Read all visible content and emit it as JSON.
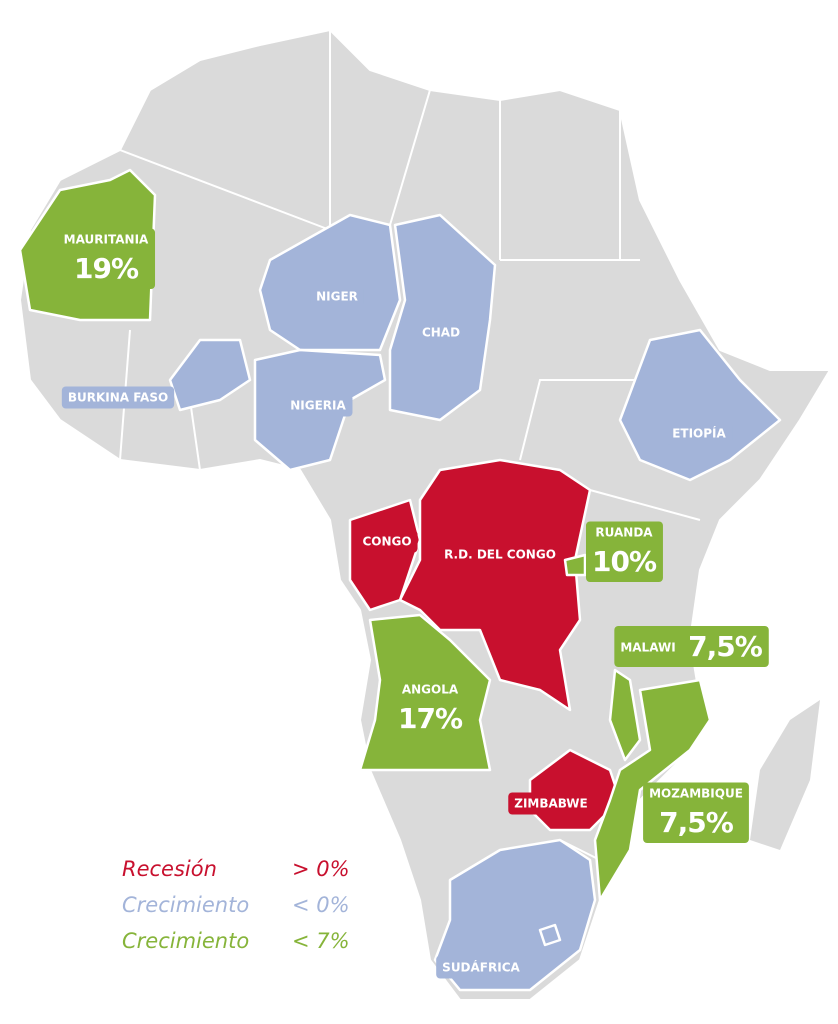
{
  "regions": [
    {
      "label": "MAURITANIA",
      "value": "19%",
      "color": "#86b43a"
    },
    {
      "label": "NIGER",
      "color": "#a3b4d9"
    },
    {
      "label": "CHAD",
      "color": "#a3b4d9"
    },
    {
      "label": "NIGERIA",
      "color": "#a3b4d9"
    },
    {
      "label": "BURKINA FASO",
      "color": "#a3b4d9"
    },
    {
      "label": "ETIOPÍA",
      "color": "#a3b4d9"
    },
    {
      "label": "CONGO",
      "color": "#c8102e"
    },
    {
      "label": "R.D. DEL CONGO",
      "color": "#c8102e"
    },
    {
      "label": "RUANDA",
      "value": "10%",
      "color": "#86b43a"
    },
    {
      "label": "ANGOLA",
      "value": "17%",
      "color": "#86b43a"
    },
    {
      "label": "MALAWI",
      "value": "7,5%",
      "color": "#86b43a"
    },
    {
      "label": "ZIMBABWE",
      "color": "#c8102e"
    },
    {
      "label": "MOZAMBIQUE",
      "value": "7,5%",
      "color": "#86b43a"
    },
    {
      "label": "SUDÁFRICA",
      "color": "#a3b4d9"
    }
  ],
  "legend": [
    {
      "name": "Recesión",
      "threshold": "> 0%",
      "color": "#c8102e"
    },
    {
      "name": "Crecimiento",
      "threshold": "< 0%",
      "color": "#a3b4d9"
    },
    {
      "name": "Crecimiento",
      "threshold": "< 7%",
      "color": "#86b43a"
    }
  ]
}
